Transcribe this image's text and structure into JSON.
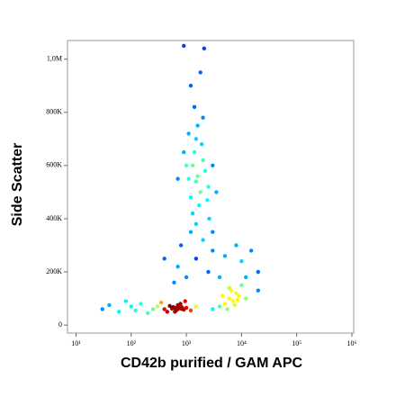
{
  "chart_data": {
    "type": "scatter",
    "x_label": "CD42b purified / GAM APC",
    "y_label": "Side Scatter",
    "x": [
      1500,
      1300,
      1800,
      1200,
      2000,
      1600,
      1100,
      2200,
      1400,
      1700,
      1000,
      2500,
      1500,
      1900,
      1300,
      2400,
      1600,
      1100,
      2000,
      1400,
      900,
      3000,
      1200,
      1800,
      900,
      2100,
      700,
      3500,
      1500,
      2600,
      1200,
      2000,
      800,
      3000,
      1500,
      5000,
      700,
      2500,
      10000,
      15000,
      4000,
      1000,
      600,
      20000,
      8000,
      3000,
      400,
      12000,
      600,
      700,
      800,
      650,
      750,
      550,
      900,
      500,
      850,
      700,
      620,
      780,
      400,
      1000,
      1200,
      300,
      250,
      1500,
      350,
      450,
      950,
      680,
      720,
      580,
      820,
      100,
      60,
      150,
      30,
      80,
      200,
      120,
      40,
      6000,
      7000,
      5000,
      8000,
      9000,
      6500,
      4000,
      10000,
      5500,
      7500,
      12000,
      3000,
      6000,
      8500,
      4500,
      20000
    ],
    "y": [
      540000,
      600000,
      500000,
      480000,
      620000,
      560000,
      550000,
      580000,
      650000,
      450000,
      600000,
      520000,
      700000,
      680000,
      420000,
      470000,
      750000,
      720000,
      780000,
      820000,
      650000,
      600000,
      900000,
      950000,
      1050000,
      1040000,
      550000,
      500000,
      380000,
      400000,
      350000,
      320000,
      300000,
      280000,
      250000,
      260000,
      220000,
      200000,
      240000,
      280000,
      180000,
      180000,
      160000,
      200000,
      300000,
      350000,
      250000,
      180000,
      65000,
      60000,
      70000,
      55000,
      68000,
      62000,
      58000,
      72000,
      64000,
      75000,
      50000,
      80000,
      60000,
      65000,
      55000,
      70000,
      60000,
      70000,
      85000,
      50000,
      90000,
      66000,
      63000,
      68000,
      61000,
      70000,
      50000,
      80000,
      60000,
      90000,
      45000,
      55000,
      75000,
      100000,
      90000,
      80000,
      120000,
      110000,
      130000,
      70000,
      150000,
      60000,
      75000,
      100000,
      60000,
      140000,
      95000,
      110000,
      130000
    ],
    "xlim": [
      7,
      1080000
    ],
    "ylim": [
      -30000,
      1070000
    ],
    "xscale": "log",
    "xticks": [
      {
        "value": 10,
        "label": "10¹"
      },
      {
        "value": 100,
        "label": "10²"
      },
      {
        "value": 1000,
        "label": "10³"
      },
      {
        "value": 10000,
        "label": "10⁴"
      },
      {
        "value": 100000,
        "label": "10⁵"
      },
      {
        "value": 1000000,
        "label": "10⁶"
      }
    ],
    "yticks": [
      0,
      {
        "value": 200000,
        "label": "200K"
      },
      {
        "value": 400000,
        "label": "400K"
      },
      {
        "value": 600000,
        "label": "600K"
      },
      {
        "value": 800000,
        "label": "800K"
      },
      {
        "value": 1000000,
        "label": "1,0M"
      }
    ]
  }
}
